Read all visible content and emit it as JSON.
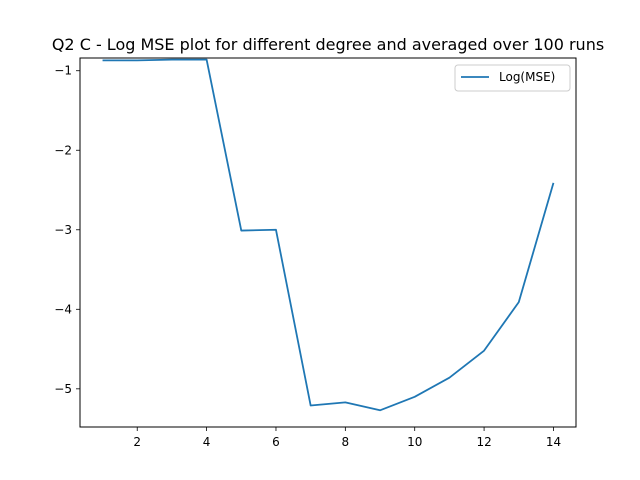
{
  "chart_data": {
    "type": "line",
    "title": "Q2 C - Log MSE plot for different degree and averaged over 100 runs",
    "xlabel": "",
    "ylabel": "",
    "xlim": [
      0.35,
      14.65
    ],
    "ylim": [
      -5.48,
      -0.84
    ],
    "xticks": [
      2,
      4,
      6,
      8,
      10,
      12,
      14
    ],
    "yticks": [
      -1,
      -2,
      -3,
      -4,
      -5
    ],
    "grid": false,
    "legend_position": "top-right",
    "series": [
      {
        "name": "Log(MSE)",
        "color": "#1f77b4",
        "x": [
          1,
          2,
          3,
          4,
          5,
          6,
          7,
          8,
          9,
          10,
          11,
          12,
          13,
          14
        ],
        "y": [
          -0.87,
          -0.87,
          -0.86,
          -0.86,
          -3.01,
          -3.0,
          -5.21,
          -5.17,
          -5.27,
          -5.1,
          -4.86,
          -4.52,
          -3.91,
          -2.41
        ]
      }
    ]
  }
}
